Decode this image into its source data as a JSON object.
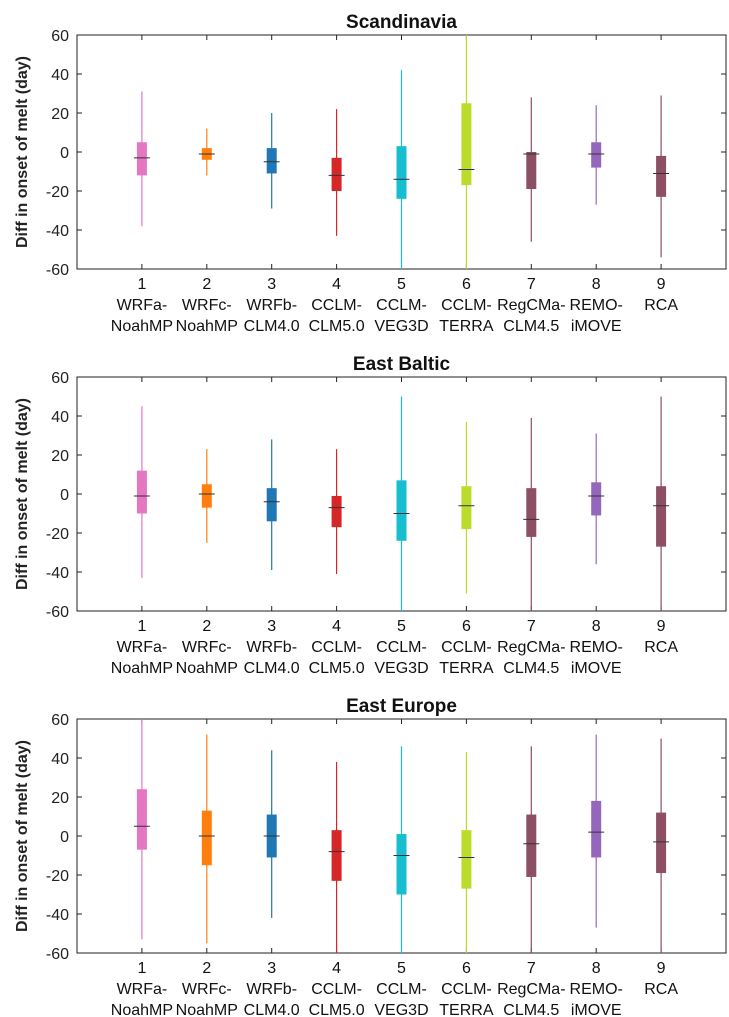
{
  "chart_data": [
    {
      "type": "box",
      "title": "Scandinavia",
      "ylabel": "Diff in onset of melt (day)",
      "ylim": [
        -60,
        60
      ],
      "yticks": [
        -60,
        -40,
        -20,
        0,
        20,
        40,
        60
      ],
      "grid": false,
      "categories": [
        {
          "num": "1",
          "l1": "WRFa-",
          "l2": "NoahMP"
        },
        {
          "num": "2",
          "l1": "WRFc-",
          "l2": "NoahMP"
        },
        {
          "num": "3",
          "l1": "WRFb-",
          "l2": "CLM4.0"
        },
        {
          "num": "4",
          "l1": "CCLM-",
          "l2": "CLM5.0"
        },
        {
          "num": "5",
          "l1": "CCLM-",
          "l2": "VEG3D"
        },
        {
          "num": "6",
          "l1": "CCLM-",
          "l2": "TERRA"
        },
        {
          "num": "7",
          "l1": "RegCMa-",
          "l2": "CLM4.5"
        },
        {
          "num": "8",
          "l1": "REMO-",
          "l2": "iMOVE"
        },
        {
          "num": "9",
          "l1": "",
          "l2": "RCA"
        }
      ],
      "colors": [
        "#e377c2",
        "#ff7f0e",
        "#1f77b4",
        "#d62728",
        "#17becf",
        "#bcdc2b",
        "#8c4f63",
        "#9467bd",
        "#8c4f63"
      ],
      "boxes": [
        {
          "whislo": -38,
          "q1": -12,
          "med": -3,
          "q3": 5,
          "whishi": 31
        },
        {
          "whislo": -12,
          "q1": -4,
          "med": -1,
          "q3": 2,
          "whishi": 12
        },
        {
          "whislo": -29,
          "q1": -11,
          "med": -5,
          "q3": 2,
          "whishi": 20
        },
        {
          "whislo": -43,
          "q1": -20,
          "med": -12,
          "q3": -3,
          "whishi": 22
        },
        {
          "whislo": -60,
          "q1": -24,
          "med": -14,
          "q3": 3,
          "whishi": 42
        },
        {
          "whislo": -60,
          "q1": -17,
          "med": -9,
          "q3": 25,
          "whishi": 60
        },
        {
          "whislo": -46,
          "q1": -19,
          "med": -1,
          "q3": 0,
          "whishi": 28
        },
        {
          "whislo": -27,
          "q1": -8,
          "med": -1,
          "q3": 5,
          "whishi": 24
        },
        {
          "whislo": -54,
          "q1": -23,
          "med": -11,
          "q3": -2,
          "whishi": 29
        }
      ]
    },
    {
      "type": "box",
      "title": "East Baltic",
      "ylabel": "Diff in onset of melt (day)",
      "ylim": [
        -60,
        60
      ],
      "yticks": [
        -60,
        -40,
        -20,
        0,
        20,
        40,
        60
      ],
      "grid": false,
      "categories": [
        {
          "num": "1",
          "l1": "WRFa-",
          "l2": "NoahMP"
        },
        {
          "num": "2",
          "l1": "WRFc-",
          "l2": "NoahMP"
        },
        {
          "num": "3",
          "l1": "WRFb-",
          "l2": "CLM4.0"
        },
        {
          "num": "4",
          "l1": "CCLM-",
          "l2": "CLM5.0"
        },
        {
          "num": "5",
          "l1": "CCLM-",
          "l2": "VEG3D"
        },
        {
          "num": "6",
          "l1": "CCLM-",
          "l2": "TERRA"
        },
        {
          "num": "7",
          "l1": "RegCMa-",
          "l2": "CLM4.5"
        },
        {
          "num": "8",
          "l1": "REMO-",
          "l2": "iMOVE"
        },
        {
          "num": "9",
          "l1": "",
          "l2": "RCA"
        }
      ],
      "colors": [
        "#e377c2",
        "#ff7f0e",
        "#1f77b4",
        "#d62728",
        "#17becf",
        "#bcdc2b",
        "#8c4f63",
        "#9467bd",
        "#8c4f63"
      ],
      "boxes": [
        {
          "whislo": -43,
          "q1": -10,
          "med": -1,
          "q3": 12,
          "whishi": 45
        },
        {
          "whislo": -25,
          "q1": -7,
          "med": 0,
          "q3": 5,
          "whishi": 23
        },
        {
          "whislo": -39,
          "q1": -14,
          "med": -4,
          "q3": 3,
          "whishi": 28
        },
        {
          "whislo": -41,
          "q1": -17,
          "med": -7,
          "q3": -1,
          "whishi": 23
        },
        {
          "whislo": -60,
          "q1": -24,
          "med": -10,
          "q3": 7,
          "whishi": 50
        },
        {
          "whislo": -51,
          "q1": -18,
          "med": -6,
          "q3": 4,
          "whishi": 37
        },
        {
          "whislo": -60,
          "q1": -22,
          "med": -13,
          "q3": 3,
          "whishi": 39
        },
        {
          "whislo": -36,
          "q1": -11,
          "med": -1,
          "q3": 6,
          "whishi": 31
        },
        {
          "whislo": -60,
          "q1": -27,
          "med": -6,
          "q3": 4,
          "whishi": 50
        }
      ]
    },
    {
      "type": "box",
      "title": "East Europe",
      "ylabel": "Diff in onset of melt (day)",
      "ylim": [
        -60,
        60
      ],
      "yticks": [
        -60,
        -40,
        -20,
        0,
        20,
        40,
        60
      ],
      "grid": false,
      "categories": [
        {
          "num": "1",
          "l1": "WRFa-",
          "l2": "NoahMP"
        },
        {
          "num": "2",
          "l1": "WRFc-",
          "l2": "NoahMP"
        },
        {
          "num": "3",
          "l1": "WRFb-",
          "l2": "CLM4.0"
        },
        {
          "num": "4",
          "l1": "CCLM-",
          "l2": "CLM5.0"
        },
        {
          "num": "5",
          "l1": "CCLM-",
          "l2": "VEG3D"
        },
        {
          "num": "6",
          "l1": "CCLM-",
          "l2": "TERRA"
        },
        {
          "num": "7",
          "l1": "RegCMa-",
          "l2": "CLM4.5"
        },
        {
          "num": "8",
          "l1": "REMO-",
          "l2": "iMOVE"
        },
        {
          "num": "9",
          "l1": "",
          "l2": "RCA"
        }
      ],
      "colors": [
        "#e377c2",
        "#ff7f0e",
        "#1f77b4",
        "#d62728",
        "#17becf",
        "#bcdc2b",
        "#8c4f63",
        "#9467bd",
        "#8c4f63"
      ],
      "boxes": [
        {
          "whislo": -53,
          "q1": -7,
          "med": 5,
          "q3": 24,
          "whishi": 60
        },
        {
          "whislo": -55,
          "q1": -15,
          "med": 0,
          "q3": 13,
          "whishi": 52
        },
        {
          "whislo": -42,
          "q1": -11,
          "med": 0,
          "q3": 11,
          "whishi": 44
        },
        {
          "whislo": -60,
          "q1": -23,
          "med": -8,
          "q3": 3,
          "whishi": 38
        },
        {
          "whislo": -60,
          "q1": -30,
          "med": -10,
          "q3": 1,
          "whishi": 46
        },
        {
          "whislo": -60,
          "q1": -27,
          "med": -11,
          "q3": 3,
          "whishi": 43
        },
        {
          "whislo": -60,
          "q1": -21,
          "med": -4,
          "q3": 11,
          "whishi": 46
        },
        {
          "whislo": -47,
          "q1": -11,
          "med": 2,
          "q3": 18,
          "whishi": 52
        },
        {
          "whislo": -60,
          "q1": -19,
          "med": -3,
          "q3": 12,
          "whishi": 50
        }
      ]
    }
  ]
}
